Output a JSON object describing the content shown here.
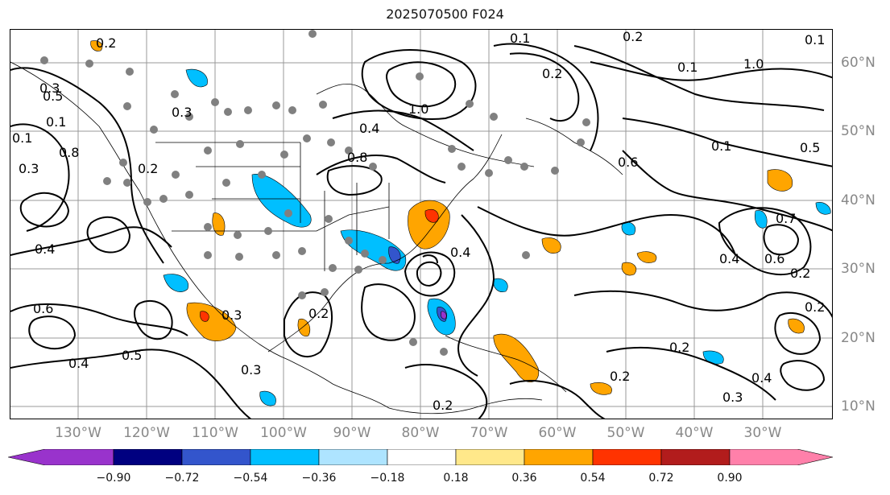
{
  "title": "2025070500 F024",
  "map": {
    "lon_labels": [
      "130°W",
      "120°W",
      "110°W",
      "100°W",
      "90°W",
      "80°W",
      "70°W",
      "60°W",
      "50°W",
      "40°W",
      "30°W"
    ],
    "lat_labels": [
      "60°N",
      "50°N",
      "40°N",
      "30°N",
      "20°N",
      "10°N"
    ],
    "contour_labels": [
      "0.2",
      "0.1",
      "0.4",
      "0.2",
      "0.1",
      "1.0",
      "0.3",
      "0.1",
      "0.3",
      "0.5",
      "0.1",
      "0.8",
      "0.2",
      "0.3",
      "0.4",
      "0.6",
      "0.5",
      "0.4",
      "0.1",
      "0.7",
      "0.6",
      "0.5",
      "0.2",
      "0.4",
      "0.6",
      "0.2",
      "0.3",
      "0.2",
      "0.4",
      "0.2",
      "0.2",
      "0.2",
      "0.3",
      "0.4",
      "0.2",
      "1.0",
      "0.8",
      "0.1",
      "0.3"
    ]
  },
  "colorbar": {
    "colors": [
      "#9933cc",
      "#000080",
      "#3355cc",
      "#00bfff",
      "#aee4ff",
      "#ffffff",
      "#ffe88a",
      "#ffa500",
      "#ff3300",
      "#b21c1c",
      "#ff80aa"
    ],
    "tick_labels": [
      "−0.90",
      "−0.72",
      "−0.54",
      "−0.36",
      "−0.18",
      "0.18",
      "0.36",
      "0.54",
      "0.72",
      "0.90"
    ]
  },
  "colors": {
    "positive": "#ffa500",
    "negative": "#00bfff",
    "contour": "#000000",
    "station": "#808080"
  }
}
